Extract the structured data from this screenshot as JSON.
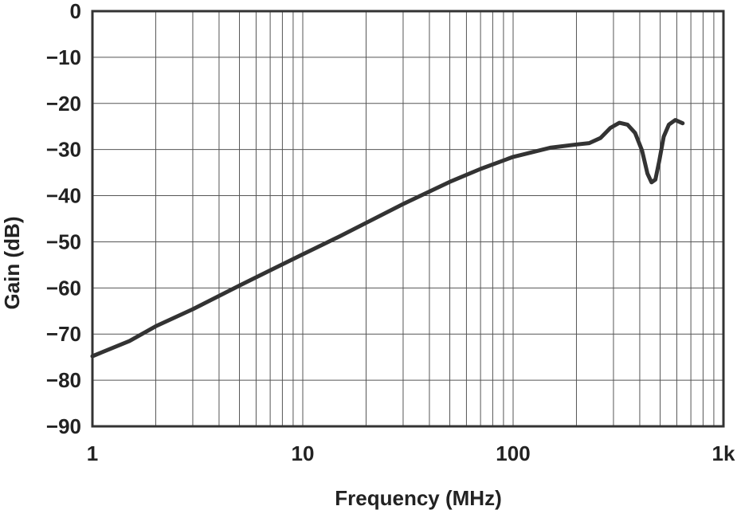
{
  "chart_data": {
    "type": "line",
    "xlabel": "Frequency (MHz)",
    "ylabel": "Gain (dB)",
    "x_scale": "log",
    "xlim": [
      1,
      1000
    ],
    "ylim": [
      -90,
      0
    ],
    "x_ticks": [
      {
        "value": 1,
        "label": "1"
      },
      {
        "value": 10,
        "label": "10"
      },
      {
        "value": 100,
        "label": "100"
      },
      {
        "value": 1000,
        "label": "1k"
      }
    ],
    "y_ticks": [
      {
        "value": 0,
        "label": "0"
      },
      {
        "value": -10,
        "label": "−10"
      },
      {
        "value": -20,
        "label": "−20"
      },
      {
        "value": -30,
        "label": "−30"
      },
      {
        "value": -40,
        "label": "−40"
      },
      {
        "value": -50,
        "label": "−50"
      },
      {
        "value": -60,
        "label": "−60"
      },
      {
        "value": -70,
        "label": "−70"
      },
      {
        "value": -80,
        "label": "−80"
      },
      {
        "value": -90,
        "label": "−90"
      }
    ],
    "grid": true,
    "series": [
      {
        "color": "#333333",
        "points": [
          [
            1,
            -74.8
          ],
          [
            1.5,
            -71.5
          ],
          [
            2,
            -68.3
          ],
          [
            3,
            -64.6
          ],
          [
            5,
            -59.5
          ],
          [
            7,
            -56.2
          ],
          [
            10,
            -52.7
          ],
          [
            15,
            -48.8
          ],
          [
            20,
            -45.9
          ],
          [
            30,
            -41.8
          ],
          [
            50,
            -37.0
          ],
          [
            70,
            -34.2
          ],
          [
            100,
            -31.6
          ],
          [
            150,
            -29.6
          ],
          [
            200,
            -28.9
          ],
          [
            230,
            -28.6
          ],
          [
            260,
            -27.5
          ],
          [
            290,
            -25.3
          ],
          [
            320,
            -24.2
          ],
          [
            350,
            -24.6
          ],
          [
            380,
            -26.4
          ],
          [
            410,
            -30.2
          ],
          [
            435,
            -35.2
          ],
          [
            455,
            -37.1
          ],
          [
            475,
            -36.5
          ],
          [
            495,
            -32.5
          ],
          [
            520,
            -27.2
          ],
          [
            550,
            -24.6
          ],
          [
            590,
            -23.6
          ],
          [
            640,
            -24.3
          ]
        ]
      }
    ]
  }
}
